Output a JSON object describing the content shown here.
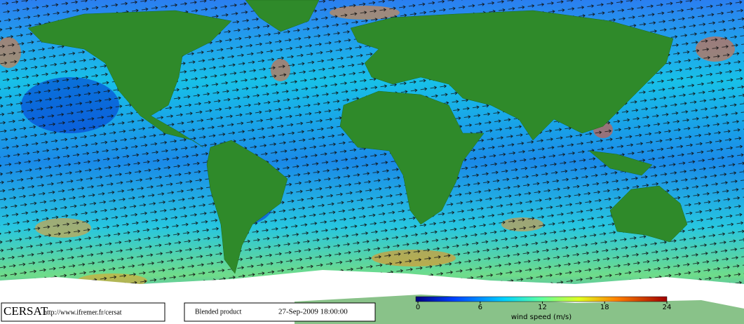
{
  "logo": "CERSAT",
  "url": "http://www.ifremer.fr/cersat",
  "product": "Blended product",
  "date": "27-Sep-2009 18:00:00",
  "colorbar": {
    "label": "wind speed (m/s)",
    "lim": [
      0,
      24
    ],
    "ticks": [
      0,
      6,
      12,
      18,
      24
    ]
  }
}
